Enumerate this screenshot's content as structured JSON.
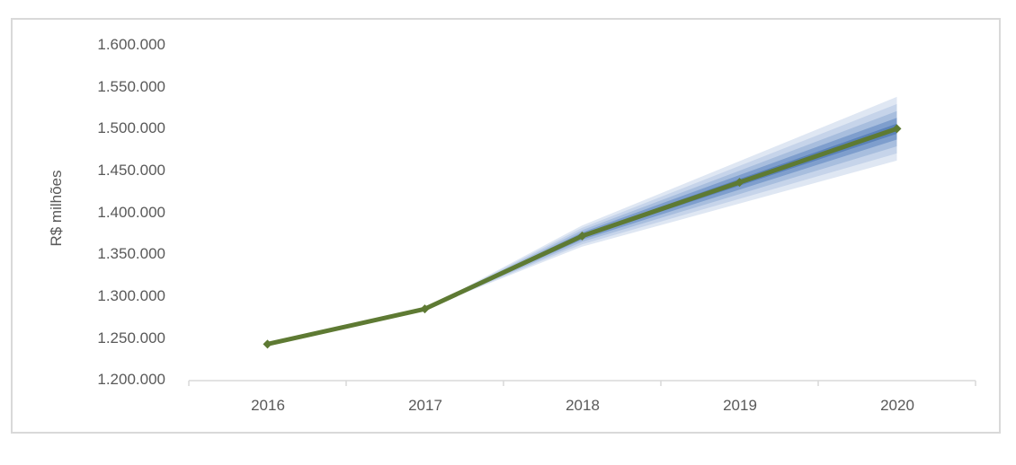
{
  "chart_data": {
    "type": "line",
    "title": "",
    "ylabel": "R$ milhões",
    "x_labels": [
      "2016",
      "2017",
      "2018",
      "2019",
      "2020"
    ],
    "x_values": [
      2016,
      2017,
      2018,
      2019,
      2020
    ],
    "ylim": [
      1200000,
      1600000
    ],
    "y_tick_step": 50000,
    "y_tick_labels": [
      "1.600.000",
      "1.550.000",
      "1.500.000",
      "1.450.000",
      "1.400.000",
      "1.350.000",
      "1.300.000",
      "1.250.000",
      "1.200.000"
    ],
    "series": [
      {
        "color": "#5e7a33",
        "marker": "diamond",
        "line_width": 5,
        "values": [
          1243000,
          1285000,
          1372000,
          1436000,
          1500000
        ]
      }
    ],
    "fan_bands": {
      "start_year": 2017,
      "end_year": 2020,
      "bands_outer_to_inner": [
        {
          "halfwidth_at_end": 38000,
          "color": "#dfe7f3"
        },
        {
          "halfwidth_at_end": 29500,
          "color": "#c6d4ea"
        },
        {
          "halfwidth_at_end": 21000,
          "color": "#a8bede"
        },
        {
          "halfwidth_at_end": 13000,
          "color": "#7e9ecd"
        },
        {
          "halfwidth_at_end": 6000,
          "color": "#5b82b9"
        }
      ]
    },
    "grid": false,
    "legend_visible": false,
    "axis_color": "#d9d9d9",
    "text_color": "#595959",
    "frame_border_color": "#d9d9d9"
  }
}
